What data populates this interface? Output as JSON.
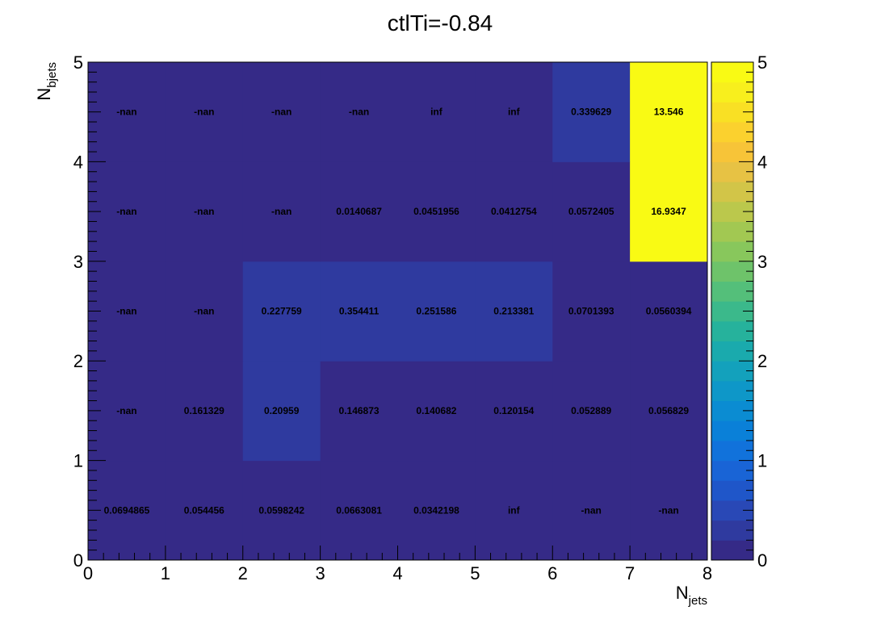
{
  "chart_data": {
    "type": "heatmap",
    "title": "ctlTi=-0.84",
    "xlabel": {
      "main": "N",
      "sub": "jets"
    },
    "ylabel": {
      "main": "N",
      "sub": "bjets"
    },
    "xlim": [
      0,
      8
    ],
    "ylim": [
      0,
      5
    ],
    "zlim": [
      0,
      5
    ],
    "x_ticks": [
      "0",
      "1",
      "2",
      "3",
      "4",
      "5",
      "6",
      "7",
      "8"
    ],
    "y_ticks": [
      "0",
      "1",
      "2",
      "3",
      "4",
      "5"
    ],
    "z_ticks": [
      "0",
      "1",
      "2",
      "3",
      "4",
      "5"
    ],
    "x_bins": [
      0,
      1,
      2,
      3,
      4,
      5,
      6,
      7
    ],
    "y_bins": [
      0,
      1,
      2,
      3,
      4
    ],
    "values": [
      [
        "0.0694865",
        "0.054456",
        "0.0598242",
        "0.0663081",
        "0.0342198",
        "inf",
        "-nan",
        "-nan"
      ],
      [
        "-nan",
        "0.161329",
        "0.20959",
        "0.146873",
        "0.140682",
        "0.120154",
        "0.052889",
        "0.056829"
      ],
      [
        "-nan",
        "-nan",
        "0.227759",
        "0.354411",
        "0.251586",
        "0.213381",
        "0.0701393",
        "0.0560394"
      ],
      [
        "-nan",
        "-nan",
        "-nan",
        "0.0140687",
        "0.0451956",
        "0.0412754",
        "0.0572405",
        "16.9347"
      ],
      [
        "-nan",
        "-nan",
        "-nan",
        "-nan",
        "inf",
        "inf",
        "0.339629",
        "13.546"
      ]
    ],
    "palette": [
      "#352a87",
      "#2f3a9f",
      "#2948b6",
      "#1f56c9",
      "#1964d6",
      "#1172db",
      "#0a80d8",
      "#0b8cd2",
      "#0e97c8",
      "#13a1bc",
      "#1aaaad",
      "#26b29c",
      "#3bb98b",
      "#54bf7a",
      "#6ec36a",
      "#88c75c",
      "#a2c852",
      "#bbc84c",
      "#d2c548",
      "#e7c244",
      "#f7c438",
      "#fbd12e",
      "#f9e024",
      "#f8ef1d",
      "#f9fa14"
    ],
    "empty_color": "#352a87",
    "grid": false,
    "colorbar": "right"
  }
}
